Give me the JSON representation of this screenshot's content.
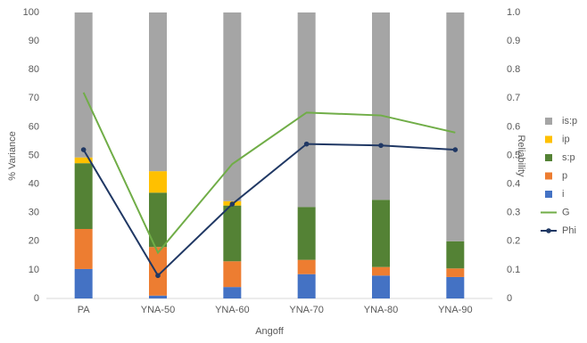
{
  "chart_data": {
    "type": "bar",
    "stacked": true,
    "categories": [
      "PA",
      "YNA-50",
      "YNA-60",
      "YNA-70",
      "YNA-80",
      "YNA-90"
    ],
    "x_label": "Angoff",
    "y_label": "% Variance",
    "y2_label": "Reliability",
    "ylim": [
      0,
      100
    ],
    "yticks": [
      0,
      10,
      20,
      30,
      40,
      50,
      60,
      70,
      80,
      90,
      100
    ],
    "y2lim": [
      0,
      1
    ],
    "y2ticks": [
      0,
      0.1,
      0.2,
      0.3,
      0.4,
      0.5,
      0.6,
      0.7,
      0.8,
      0.9,
      {
        "value": 1,
        "label": "1.0"
      }
    ],
    "series": [
      {
        "name": "i",
        "color": "#4472c4",
        "values": [
          10.3,
          1,
          4,
          8.5,
          8,
          7.5
        ]
      },
      {
        "name": "p",
        "color": "#ed7d31",
        "values": [
          14,
          17,
          9,
          5,
          3,
          3
        ]
      },
      {
        "name": "s:p",
        "color": "#548235",
        "values": [
          23,
          19,
          19.5,
          18.5,
          23.5,
          9.5
        ]
      },
      {
        "name": "ip",
        "color": "#ffc000",
        "values": [
          2,
          7.5,
          1.5,
          0,
          0,
          0
        ]
      },
      {
        "name": "is:p",
        "color": "#a5a5a5",
        "values": [
          50.7,
          55.5,
          66,
          68,
          65.5,
          80
        ]
      },
      {
        "name": "G",
        "type": "line",
        "axis": "y2",
        "color": "#70ad47",
        "values": [
          0.72,
          0.16,
          0.47,
          0.65,
          0.64,
          0.58
        ]
      },
      {
        "name": "Phi",
        "type": "line",
        "axis": "y2",
        "color": "#203864",
        "marker": "circle",
        "values": [
          0.52,
          0.08,
          0.33,
          0.54,
          0.535,
          0.52
        ]
      }
    ]
  }
}
